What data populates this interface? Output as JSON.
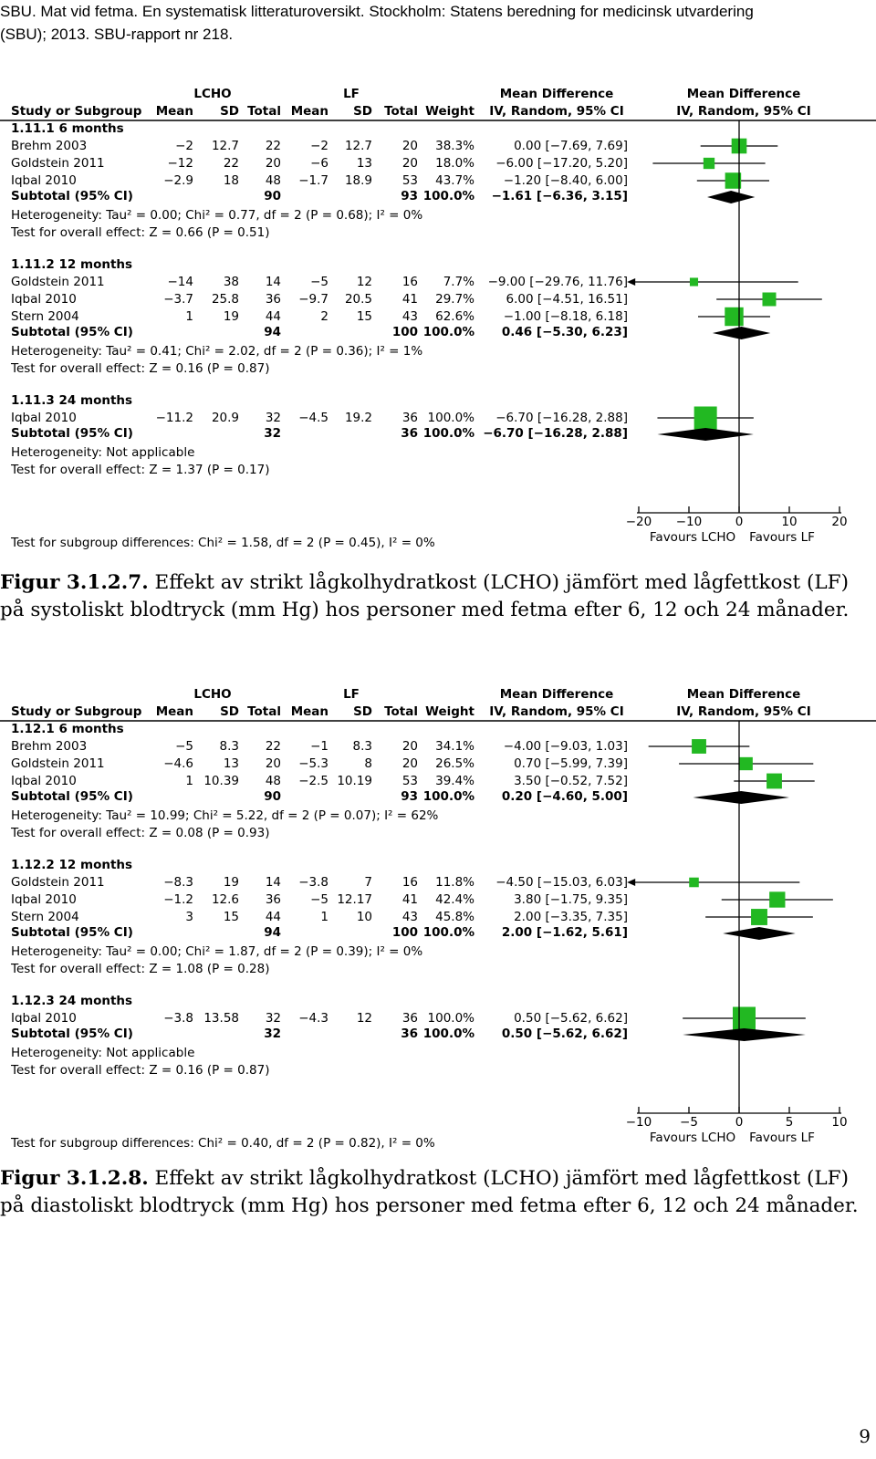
{
  "header": {
    "line1": "SBU. Mat vid fetma. En systematisk litteraturoversikt. Stockholm: Statens beredning for medicinsk utvardering",
    "line2": "(SBU); 2013. SBU-rapport nr 218."
  },
  "figures": [
    {
      "columns": {
        "group_lcho": "LCHO",
        "group_lf": "LF",
        "md_header1": "Mean Difference",
        "md_header2": "IV, Random, 95% CI",
        "plot_header1": "Mean Difference",
        "plot_header2": "IV, Random, 95% CI",
        "study": "Study or Subgroup",
        "mean1": "Mean",
        "sd1": "SD",
        "total1": "Total",
        "mean2": "Mean",
        "sd2": "SD",
        "total2": "Total",
        "weight": "Weight"
      },
      "groups": [
        {
          "label": "1.11.1 6 months",
          "studies": [
            {
              "name": "Brehm 2003",
              "m1": "−2",
              "sd1": "12.7",
              "n1": "22",
              "m2": "−2",
              "sd2": "12.7",
              "n2": "20",
              "w": "38.3%",
              "ci": "0.00 [−7.69, 7.69]"
            },
            {
              "name": "Goldstein 2011",
              "m1": "−12",
              "sd1": "22",
              "n1": "20",
              "m2": "−6",
              "sd2": "13",
              "n2": "20",
              "w": "18.0%",
              "ci": "−6.00 [−17.20, 5.20]"
            },
            {
              "name": "Iqbal 2010",
              "m1": "−2.9",
              "sd1": "18",
              "n1": "48",
              "m2": "−1.7",
              "sd2": "18.9",
              "n2": "53",
              "w": "43.7%",
              "ci": "−1.20 [−8.40, 6.00]"
            }
          ],
          "subtotal": {
            "name": "Subtotal (95% CI)",
            "n1": "90",
            "n2": "93",
            "w": "100.0%",
            "ci": "−1.61 [−6.36, 3.15]"
          },
          "heterogeneity": "Heterogeneity: Tau² = 0.00; Chi² = 0.77, df = 2 (P = 0.68); I² = 0%",
          "overall": "Test for overall effect: Z = 0.66 (P = 0.51)"
        },
        {
          "label": "1.11.2 12 months",
          "studies": [
            {
              "name": "Goldstein 2011",
              "m1": "−14",
              "sd1": "38",
              "n1": "14",
              "m2": "−5",
              "sd2": "12",
              "n2": "16",
              "w": "7.7%",
              "ci": "−9.00 [−29.76, 11.76]"
            },
            {
              "name": "Iqbal 2010",
              "m1": "−3.7",
              "sd1": "25.8",
              "n1": "36",
              "m2": "−9.7",
              "sd2": "20.5",
              "n2": "41",
              "w": "29.7%",
              "ci": "6.00 [−4.51, 16.51]"
            },
            {
              "name": "Stern 2004",
              "m1": "1",
              "sd1": "19",
              "n1": "44",
              "m2": "2",
              "sd2": "15",
              "n2": "43",
              "w": "62.6%",
              "ci": "−1.00 [−8.18, 6.18]"
            }
          ],
          "subtotal": {
            "name": "Subtotal (95% CI)",
            "n1": "94",
            "n2": "100",
            "w": "100.0%",
            "ci": "0.46 [−5.30, 6.23]"
          },
          "heterogeneity": "Heterogeneity: Tau² = 0.41; Chi² = 2.02, df = 2 (P = 0.36); I² = 1%",
          "overall": "Test for overall effect: Z = 0.16 (P = 0.87)"
        },
        {
          "label": "1.11.3 24 months",
          "studies": [
            {
              "name": "Iqbal 2010",
              "m1": "−11.2",
              "sd1": "20.9",
              "n1": "32",
              "m2": "−4.5",
              "sd2": "19.2",
              "n2": "36",
              "w": "100.0%",
              "ci": "−6.70 [−16.28, 2.88]"
            }
          ],
          "subtotal": {
            "name": "Subtotal (95% CI)",
            "n1": "32",
            "n2": "36",
            "w": "100.0%",
            "ci": "−6.70 [−16.28, 2.88]"
          },
          "heterogeneity": "Heterogeneity: Not applicable",
          "overall": "Test for overall effect: Z = 1.37 (P = 0.17)"
        }
      ],
      "subgroup_test": "Test for subgroup differences: Chi² = 1.58, df = 2 (P = 0.45), I² = 0%",
      "axis": {
        "ticks": [
          "−20",
          "−10",
          "0",
          "10",
          "20"
        ],
        "favours_left": "Favours LCHO",
        "favours_right": "Favours LF"
      },
      "caption_label": "Figur 3.1.2.7.",
      "caption_text": "Effekt av strikt lågkolhydratkost (LCHO) jämfört med lågfettkost (LF) på systoliskt blodtryck (mm Hg) hos personer med fetma efter 6, 12 och 24 månader."
    },
    {
      "columns": {
        "group_lcho": "LCHO",
        "group_lf": "LF",
        "md_header1": "Mean Difference",
        "md_header2": "IV, Random, 95% CI",
        "plot_header1": "Mean Difference",
        "plot_header2": "IV, Random, 95% CI",
        "study": "Study or Subgroup",
        "mean1": "Mean",
        "sd1": "SD",
        "total1": "Total",
        "mean2": "Mean",
        "sd2": "SD",
        "total2": "Total",
        "weight": "Weight"
      },
      "groups": [
        {
          "label": "1.12.1 6 months",
          "studies": [
            {
              "name": "Brehm 2003",
              "m1": "−5",
              "sd1": "8.3",
              "n1": "22",
              "m2": "−1",
              "sd2": "8.3",
              "n2": "20",
              "w": "34.1%",
              "ci": "−4.00 [−9.03, 1.03]"
            },
            {
              "name": "Goldstein 2011",
              "m1": "−4.6",
              "sd1": "13",
              "n1": "20",
              "m2": "−5.3",
              "sd2": "8",
              "n2": "20",
              "w": "26.5%",
              "ci": "0.70 [−5.99, 7.39]"
            },
            {
              "name": "Iqbal 2010",
              "m1": "1",
              "sd1": "10.39",
              "n1": "48",
              "m2": "−2.5",
              "sd2": "10.19",
              "n2": "53",
              "w": "39.4%",
              "ci": "3.50 [−0.52, 7.52]"
            }
          ],
          "subtotal": {
            "name": "Subtotal (95% CI)",
            "n1": "90",
            "n2": "93",
            "w": "100.0%",
            "ci": "0.20 [−4.60, 5.00]"
          },
          "heterogeneity": "Heterogeneity: Tau² = 10.99; Chi² = 5.22, df = 2 (P = 0.07); I² = 62%",
          "overall": "Test for overall effect: Z = 0.08 (P = 0.93)"
        },
        {
          "label": "1.12.2 12 months",
          "studies": [
            {
              "name": "Goldstein 2011",
              "m1": "−8.3",
              "sd1": "19",
              "n1": "14",
              "m2": "−3.8",
              "sd2": "7",
              "n2": "16",
              "w": "11.8%",
              "ci": "−4.50 [−15.03, 6.03]"
            },
            {
              "name": "Iqbal 2010",
              "m1": "−1.2",
              "sd1": "12.6",
              "n1": "36",
              "m2": "−5",
              "sd2": "12.17",
              "n2": "41",
              "w": "42.4%",
              "ci": "3.80 [−1.75, 9.35]"
            },
            {
              "name": "Stern 2004",
              "m1": "3",
              "sd1": "15",
              "n1": "44",
              "m2": "1",
              "sd2": "10",
              "n2": "43",
              "w": "45.8%",
              "ci": "2.00 [−3.35, 7.35]"
            }
          ],
          "subtotal": {
            "name": "Subtotal (95% CI)",
            "n1": "94",
            "n2": "100",
            "w": "100.0%",
            "ci": "2.00 [−1.62, 5.61]"
          },
          "heterogeneity": "Heterogeneity: Tau² = 0.00; Chi² = 1.87, df = 2 (P = 0.39); I² = 0%",
          "overall": "Test for overall effect: Z = 1.08 (P = 0.28)"
        },
        {
          "label": "1.12.3 24 months",
          "studies": [
            {
              "name": "Iqbal 2010",
              "m1": "−3.8",
              "sd1": "13.58",
              "n1": "32",
              "m2": "−4.3",
              "sd2": "12",
              "n2": "36",
              "w": "100.0%",
              "ci": "0.50 [−5.62, 6.62]"
            }
          ],
          "subtotal": {
            "name": "Subtotal (95% CI)",
            "n1": "32",
            "n2": "36",
            "w": "100.0%",
            "ci": "0.50 [−5.62, 6.62]"
          },
          "heterogeneity": "Heterogeneity: Not applicable",
          "overall": "Test for overall effect: Z = 0.16 (P = 0.87)"
        }
      ],
      "subgroup_test": "Test for subgroup differences: Chi² = 0.40, df = 2 (P = 0.82), I² = 0%",
      "axis": {
        "ticks": [
          "−10",
          "−5",
          "0",
          "5",
          "10"
        ],
        "favours_left": "Favours LCHO",
        "favours_right": "Favours LF"
      },
      "caption_label": "Figur 3.1.2.8.",
      "caption_text": "Effekt av strikt lågkolhydratkost (LCHO) jämfört med lågfettkost (LF) på diastoliskt blodtryck (mm Hg) hos personer med fetma efter 6, 12 och 24 månader."
    }
  ],
  "colors": {
    "marker": "#22b822",
    "diamond": "#000000",
    "line": "#000000"
  },
  "chart_data": [
    {
      "type": "forest",
      "xlim": [
        -20,
        20
      ],
      "tick_values": [
        -20,
        -10,
        0,
        10,
        20
      ],
      "rows": [
        {
          "kind": "study",
          "est": 0.0,
          "lo": -7.69,
          "hi": 7.69,
          "weight": 38.3
        },
        {
          "kind": "study",
          "est": -6.0,
          "lo": -17.2,
          "hi": 5.2,
          "weight": 18.0
        },
        {
          "kind": "study",
          "est": -1.2,
          "lo": -8.4,
          "hi": 6.0,
          "weight": 43.7
        },
        {
          "kind": "subtotal",
          "est": -1.61,
          "lo": -6.36,
          "hi": 3.15
        },
        {
          "kind": "study",
          "est": -9.0,
          "lo": -29.76,
          "hi": 11.76,
          "weight": 7.7
        },
        {
          "kind": "study",
          "est": 6.0,
          "lo": -4.51,
          "hi": 16.51,
          "weight": 29.7
        },
        {
          "kind": "study",
          "est": -1.0,
          "lo": -8.18,
          "hi": 6.18,
          "weight": 62.6
        },
        {
          "kind": "subtotal",
          "est": 0.46,
          "lo": -5.3,
          "hi": 6.23
        },
        {
          "kind": "study",
          "est": -6.7,
          "lo": -16.28,
          "hi": 2.88,
          "weight": 100.0
        },
        {
          "kind": "subtotal",
          "est": -6.7,
          "lo": -16.28,
          "hi": 2.88
        }
      ]
    },
    {
      "type": "forest",
      "xlim": [
        -10,
        10
      ],
      "tick_values": [
        -10,
        -5,
        0,
        5,
        10
      ],
      "rows": [
        {
          "kind": "study",
          "est": -4.0,
          "lo": -9.03,
          "hi": 1.03,
          "weight": 34.1
        },
        {
          "kind": "study",
          "est": 0.7,
          "lo": -5.99,
          "hi": 7.39,
          "weight": 26.5
        },
        {
          "kind": "study",
          "est": 3.5,
          "lo": -0.52,
          "hi": 7.52,
          "weight": 39.4
        },
        {
          "kind": "subtotal",
          "est": 0.2,
          "lo": -4.6,
          "hi": 5.0
        },
        {
          "kind": "study",
          "est": -4.5,
          "lo": -15.03,
          "hi": 6.03,
          "weight": 11.8
        },
        {
          "kind": "study",
          "est": 3.8,
          "lo": -1.75,
          "hi": 9.35,
          "weight": 42.4
        },
        {
          "kind": "study",
          "est": 2.0,
          "lo": -3.35,
          "hi": 7.35,
          "weight": 45.8
        },
        {
          "kind": "subtotal",
          "est": 2.0,
          "lo": -1.62,
          "hi": 5.61
        },
        {
          "kind": "study",
          "est": 0.5,
          "lo": -5.62,
          "hi": 6.62,
          "weight": 100.0
        },
        {
          "kind": "subtotal",
          "est": 0.5,
          "lo": -5.62,
          "hi": 6.62
        }
      ]
    }
  ],
  "page_number": "9"
}
